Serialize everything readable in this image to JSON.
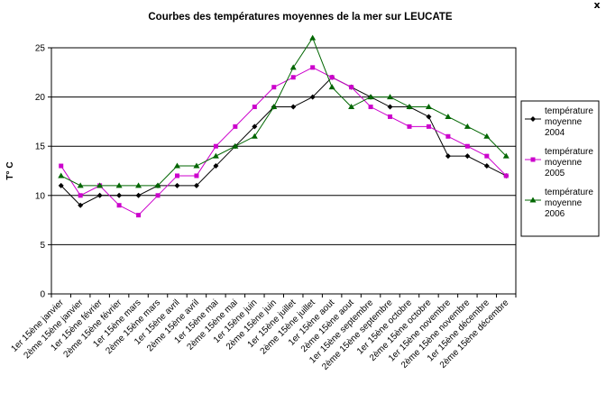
{
  "window": {
    "close_glyph": "x"
  },
  "chart_data": {
    "type": "line",
    "title": "Courbes des températures moyennes de la mer sur LEUCATE",
    "xlabel": "",
    "ylabel": "T° C",
    "ylim": [
      0,
      25
    ],
    "yticks": [
      0,
      5,
      10,
      15,
      20,
      25
    ],
    "grid": true,
    "legend_position": "right",
    "categories": [
      "1er 15ène janvier",
      "2ème 15ène janvier",
      "1er 15ène février",
      "2ème 15ène février",
      "1er 15ène mars",
      "2ème 15ène mars",
      "1er 15ène avril",
      "2ème 15ène avril",
      "1er 15ène mai",
      "2ème 15ène mai",
      "1er 15ène juin",
      "2ème 15ène juin",
      "1er 15ène juillet",
      "2ème 15ène juillet",
      "1er 15ène aout",
      "2ème 15ène aout",
      "1er 15ène septembre",
      "2ème 15ène septembre",
      "1er 15ène octobre",
      "2ème 15ène octobre",
      "1er 15ène novembre",
      "2ème 15ène novembre",
      "1er 15ène décembre",
      "2ème 15ène décembre"
    ],
    "series": [
      {
        "name": "température moyenne 2004",
        "color": "#000000",
        "marker": "diamond",
        "values": [
          11,
          9,
          10,
          10,
          10,
          11,
          11,
          11,
          13,
          15,
          17,
          19,
          19,
          20,
          22,
          21,
          20,
          19,
          19,
          18,
          14,
          14,
          13,
          12
        ]
      },
      {
        "name": "température moyenne 2005",
        "color": "#cc00cc",
        "marker": "square",
        "values": [
          13,
          10,
          11,
          9,
          8,
          10,
          12,
          12,
          15,
          17,
          19,
          21,
          22,
          23,
          22,
          21,
          19,
          18,
          17,
          17,
          16,
          15,
          14,
          12
        ]
      },
      {
        "name": "température moyenne 2006",
        "color": "#006600",
        "marker": "triangle",
        "values": [
          12,
          11,
          11,
          11,
          11,
          11,
          13,
          13,
          14,
          15,
          16,
          19,
          23,
          26,
          21,
          19,
          20,
          20,
          19,
          19,
          18,
          17,
          16,
          14
        ]
      }
    ]
  }
}
